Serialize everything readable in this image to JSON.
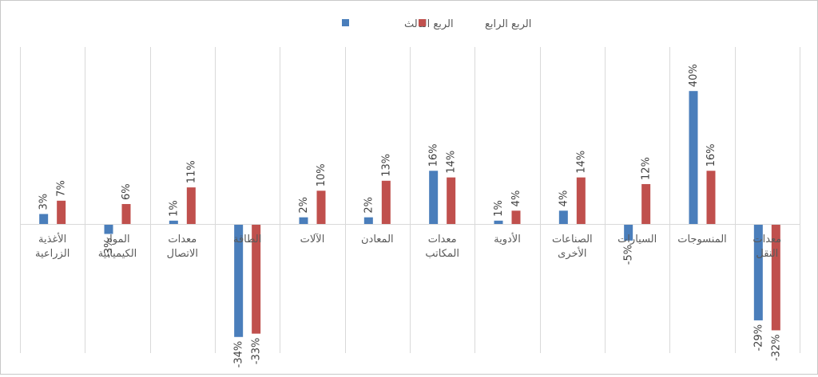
{
  "chart_data": {
    "type": "bar",
    "title": "",
    "xlabel": "",
    "ylabel": "",
    "ylim": [
      -38,
      48
    ],
    "grid": "vertical category separators",
    "legend": "top-center",
    "categories": [
      [
        "الأغذية",
        "الزراعية"
      ],
      [
        "المواد",
        "الكيميائية"
      ],
      [
        "معدات",
        "الاتصال"
      ],
      [
        "الطاقة"
      ],
      [
        "الآلات"
      ],
      [
        "المعادن"
      ],
      [
        "معدات",
        "المكاتب"
      ],
      [
        "الأدوية"
      ],
      [
        "الصناعات",
        "الأخرى"
      ],
      [
        "السيارات"
      ],
      [
        "المنسوجات"
      ],
      [
        "معدات",
        "النقل"
      ]
    ],
    "series": [
      {
        "name": "الربع الثالث",
        "color": "#4a7ebb",
        "values": [
          3,
          -3,
          1,
          -34,
          2,
          2,
          16,
          1,
          4,
          -5,
          40,
          -29
        ],
        "labels": [
          "3%",
          "-3%",
          "1%",
          "-34%",
          "2%",
          "2%",
          "16%",
          "1%",
          "4%",
          "-5%",
          "40%",
          "-29%"
        ]
      },
      {
        "name": "الربع الرابع",
        "color": "#c0504d",
        "values": [
          7,
          6,
          11,
          -33,
          10,
          13,
          14,
          4,
          14,
          12,
          16,
          -32
        ],
        "labels": [
          "7%",
          "6%",
          "11%",
          "-33%",
          "10%",
          "13%",
          "14%",
          "4%",
          "14%",
          "12%",
          "16%",
          "-32%"
        ]
      }
    ]
  }
}
